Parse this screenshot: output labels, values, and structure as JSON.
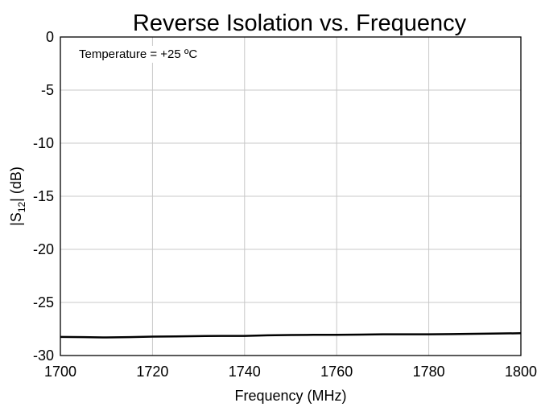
{
  "chart_data": {
    "type": "line",
    "title": "Reverse Isolation vs. Frequency",
    "xlabel": "Frequency (MHz)",
    "ylabel_parts": [
      "|S",
      "12",
      "| (dB)"
    ],
    "annotation": "Temperature = +25 ºC",
    "x": [
      1700,
      1705,
      1710,
      1715,
      1720,
      1725,
      1730,
      1735,
      1740,
      1745,
      1750,
      1755,
      1760,
      1765,
      1770,
      1775,
      1780,
      1785,
      1790,
      1795,
      1800
    ],
    "series": [
      {
        "color": "#000000",
        "values": [
          -28.25,
          -28.27,
          -28.3,
          -28.27,
          -28.22,
          -28.2,
          -28.17,
          -28.15,
          -28.15,
          -28.1,
          -28.07,
          -28.05,
          -28.05,
          -28.03,
          -28.0,
          -28.0,
          -28.0,
          -27.98,
          -27.95,
          -27.93,
          -27.9
        ]
      }
    ],
    "xlim": [
      1700,
      1800
    ],
    "xticks": [
      1700,
      1720,
      1740,
      1760,
      1780,
      1800
    ],
    "ylim": [
      -30,
      0
    ],
    "yticks": [
      0,
      -5,
      -10,
      -15,
      -20,
      -25,
      -30
    ],
    "grid": true
  }
}
